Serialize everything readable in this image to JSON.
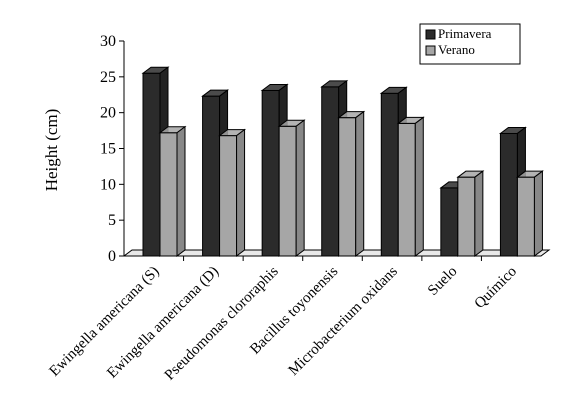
{
  "chart_data": {
    "type": "bar",
    "title": "",
    "xlabel": "",
    "ylabel": "Height (cm)",
    "ylim": [
      0,
      30
    ],
    "yticks": [
      0,
      5,
      10,
      15,
      20,
      25,
      30
    ],
    "grid": false,
    "legend_position": "top-right",
    "bar_style": "3d",
    "categories": [
      "Ewingella americana (S)",
      "Ewingella americana (D)",
      "Pseudomonas clororaphis",
      "Bacillus toyonensis",
      "Microbacterium oxidans",
      "Suelo",
      "Químico"
    ],
    "series": [
      {
        "name": "Primavera",
        "color": "#2b2b2b",
        "values": [
          25.5,
          22.3,
          23.1,
          23.6,
          22.7,
          9.5,
          17.1
        ]
      },
      {
        "name": "Verano",
        "color": "#a6a6a6",
        "values": [
          17.2,
          16.8,
          18.1,
          19.3,
          18.5,
          11.0,
          11.0
        ]
      }
    ]
  }
}
